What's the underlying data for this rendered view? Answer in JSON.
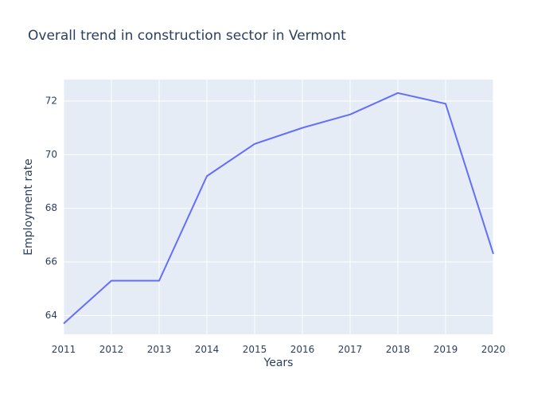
{
  "chart_data": {
    "type": "line",
    "title": "Overall trend in construction sector in Vermont",
    "xlabel": "Years",
    "ylabel": "Employment rate",
    "x": [
      2011,
      2012,
      2013,
      2014,
      2015,
      2016,
      2017,
      2018,
      2019,
      2020
    ],
    "series": [
      {
        "values": [
          63.7,
          65.3,
          65.3,
          69.2,
          70.4,
          71.0,
          71.5,
          72.3,
          71.9,
          66.3
        ]
      }
    ],
    "xlim": [
      2011,
      2020
    ],
    "ylim": [
      63.3,
      72.8
    ],
    "yticks": [
      64,
      66,
      68,
      70,
      72
    ],
    "xticks": [
      2011,
      2012,
      2013,
      2014,
      2015,
      2016,
      2017,
      2018,
      2019,
      2020
    ],
    "grid": true,
    "line_color": "#636efa",
    "plot_bg": "#e5ecf6",
    "grid_color": "#ffffff"
  }
}
